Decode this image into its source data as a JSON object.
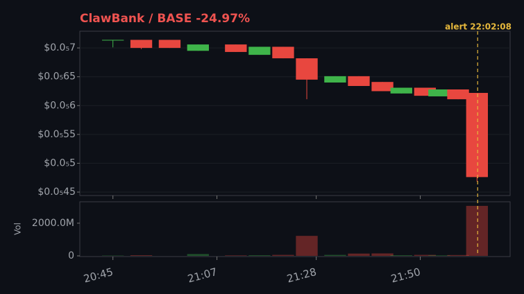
{
  "chart_data": {
    "type": "candlestick",
    "title": "ClawBank / BASE  -24.97%",
    "x": [
      "20:45",
      "20:51",
      "20:57",
      "21:03",
      "21:11",
      "21:16",
      "21:21",
      "21:26",
      "21:32",
      "21:37",
      "21:42",
      "21:46",
      "21:51",
      "21:54",
      "21:58",
      "22:02"
    ],
    "open": [
      7.14e-07,
      7.14e-07,
      7.14e-07,
      6.95e-07,
      7.06e-07,
      6.88e-07,
      7.02e-07,
      6.82e-07,
      6.4e-07,
      6.51e-07,
      6.41e-07,
      6.21e-07,
      6.31e-07,
      6.16e-07,
      6.28e-07,
      6.22e-07
    ],
    "high": [
      7.14e-07,
      7.14e-07,
      7.14e-07,
      7.06e-07,
      7.06e-07,
      7.02e-07,
      7.02e-07,
      6.82e-07,
      6.51e-07,
      6.51e-07,
      6.41e-07,
      6.31e-07,
      6.31e-07,
      6.28e-07,
      6.28e-07,
      6.22e-07
    ],
    "low": [
      7.01e-07,
      6.98e-07,
      7e-07,
      6.95e-07,
      6.93e-07,
      6.88e-07,
      6.82e-07,
      6.11e-07,
      6.4e-07,
      6.34e-07,
      6.25e-07,
      6.21e-07,
      6.17e-07,
      6.16e-07,
      6.11e-07,
      4.68e-07
    ],
    "close": [
      7.14e-07,
      7e-07,
      7e-07,
      7.06e-07,
      6.93e-07,
      7.02e-07,
      6.82e-07,
      6.45e-07,
      6.51e-07,
      6.34e-07,
      6.25e-07,
      6.31e-07,
      6.17e-07,
      6.28e-07,
      6.11e-07,
      4.76e-07
    ],
    "volume": [
      20000000,
      40000000,
      0,
      110000000,
      30000000,
      40000000,
      60000000,
      1224000000,
      60000000,
      140000000,
      150000000,
      40000000,
      60000000,
      30000000,
      50000000,
      3061000000
    ],
    "up_color": "#3fb44a",
    "down_color": "#e8473f",
    "xlim": [
      "20:38",
      "22:09"
    ],
    "xticks": [
      "20:45",
      "21:07",
      "21:28",
      "21:50"
    ],
    "ylim": [
      4.44e-07,
      7.29e-07
    ],
    "yticks": [
      {
        "value": 4.5e-07,
        "label": "$0.0₅45"
      },
      {
        "value": 5e-07,
        "label": "$0.0₅5"
      },
      {
        "value": 5.5e-07,
        "label": "$0.0₅55"
      },
      {
        "value": 6e-07,
        "label": "$0.0₅6"
      },
      {
        "value": 6.5e-07,
        "label": "$0.0₅65"
      },
      {
        "value": 7e-07,
        "label": "$0.0₅7"
      }
    ],
    "volume_ylabel": "Vol",
    "volume_ylim": [
      0,
      3184000000
    ],
    "volume_yticks": [
      0,
      {
        "value": 2000000000,
        "label": "2000.0M"
      }
    ],
    "grid": true,
    "annotation": {
      "text": "alert 22:02:08",
      "x": "22:02:08",
      "color": "#e6b83c"
    }
  }
}
